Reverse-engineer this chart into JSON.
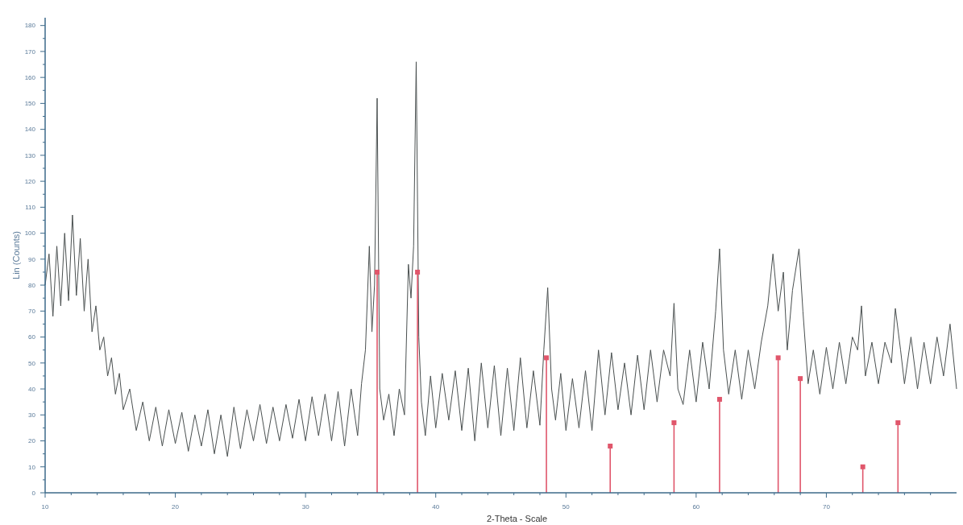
{
  "chart_data": {
    "type": "line",
    "xlabel": "2-Theta - Scale",
    "ylabel": "Lin (Counts)",
    "xlim": [
      10,
      80
    ],
    "ylim": [
      0,
      183
    ],
    "xticks": [
      10,
      {
        "value": 12,
        "label": null
      },
      {
        "value": 14,
        "label": null
      },
      {
        "value": 16,
        "label": null
      },
      {
        "value": 18,
        "label": null
      },
      20,
      {
        "value": 22,
        "label": null
      },
      {
        "value": 24,
        "label": null
      },
      {
        "value": 26,
        "label": null
      },
      {
        "value": 28,
        "label": null
      },
      30,
      {
        "value": 32,
        "label": null
      },
      {
        "value": 34,
        "label": null
      },
      {
        "value": 36,
        "label": null
      },
      {
        "value": 38,
        "label": null
      },
      40,
      {
        "value": 42,
        "label": null
      },
      {
        "value": 44,
        "label": null
      },
      {
        "value": 46,
        "label": null
      },
      {
        "value": 48,
        "label": null
      },
      50,
      {
        "value": 52,
        "label": null
      },
      {
        "value": 54,
        "label": null
      },
      {
        "value": 56,
        "label": null
      },
      {
        "value": 58,
        "label": null
      },
      60,
      {
        "value": 62,
        "label": null
      },
      {
        "value": 64,
        "label": null
      },
      {
        "value": 66,
        "label": null
      },
      {
        "value": 68,
        "label": null
      },
      70,
      {
        "value": 72,
        "label": null
      },
      {
        "value": 74,
        "label": null
      },
      {
        "value": 76,
        "label": null
      },
      {
        "value": 78,
        "label": null
      }
    ],
    "yticks": [
      0,
      {
        "value": 5,
        "label": null
      },
      10,
      {
        "value": 15,
        "label": null
      },
      20,
      {
        "value": 25,
        "label": null
      },
      30,
      {
        "value": 35,
        "label": null
      },
      40,
      {
        "value": 45,
        "label": null
      },
      50,
      {
        "value": 55,
        "label": null
      },
      60,
      {
        "value": 65,
        "label": null
      },
      70,
      {
        "value": 75,
        "label": null
      },
      80,
      {
        "value": 85,
        "label": null
      },
      90,
      {
        "value": 95,
        "label": null
      },
      100,
      {
        "value": 105,
        "label": null
      },
      110,
      {
        "value": 115,
        "label": null
      },
      120,
      {
        "value": 125,
        "label": null
      },
      130,
      {
        "value": 135,
        "label": null
      },
      140,
      {
        "value": 145,
        "label": null
      },
      150,
      {
        "value": 155,
        "label": null
      },
      160,
      {
        "value": 165,
        "label": null
      },
      170,
      {
        "value": 175,
        "label": null
      },
      180
    ],
    "grid": false,
    "series": [
      {
        "color": "#4a5050",
        "x": [
          10,
          10.3,
          10.6,
          10.9,
          11.2,
          11.5,
          11.8,
          12.1,
          12.4,
          12.7,
          13,
          13.3,
          13.6,
          13.9,
          14.2,
          14.5,
          14.8,
          15.1,
          15.4,
          15.7,
          16,
          16.5,
          17,
          17.5,
          18,
          18.5,
          19,
          19.5,
          20,
          20.5,
          21,
          21.5,
          22,
          22.5,
          23,
          23.5,
          24,
          24.5,
          25,
          25.5,
          26,
          26.5,
          27,
          27.5,
          28,
          28.5,
          29,
          29.5,
          30,
          30.5,
          31,
          31.5,
          32,
          32.5,
          33,
          33.5,
          34,
          34.3,
          34.6,
          34.9,
          35.1,
          35.3,
          35.5,
          35.7,
          36,
          36.4,
          36.8,
          37.2,
          37.6,
          37.9,
          38.1,
          38.3,
          38.5,
          38.7,
          38.9,
          39.2,
          39.6,
          40,
          40.5,
          41,
          41.5,
          42,
          42.5,
          43,
          43.5,
          44,
          44.5,
          45,
          45.5,
          46,
          46.5,
          47,
          47.5,
          48,
          48.3,
          48.6,
          48.9,
          49.2,
          49.6,
          50,
          50.5,
          51,
          51.5,
          52,
          52.5,
          53,
          53.5,
          54,
          54.5,
          55,
          55.5,
          56,
          56.5,
          57,
          57.5,
          58,
          58.3,
          58.6,
          59,
          59.5,
          60,
          60.5,
          61,
          61.5,
          61.8,
          62.1,
          62.5,
          63,
          63.5,
          64,
          64.5,
          65,
          65.5,
          65.9,
          66.3,
          66.7,
          67,
          67.4,
          67.9,
          68.2,
          68.6,
          69,
          69.5,
          70,
          70.5,
          71,
          71.5,
          72,
          72.4,
          72.7,
          73,
          73.5,
          74,
          74.5,
          75,
          75.3,
          75.7,
          76,
          76.5,
          77,
          77.5,
          78,
          78.5,
          79,
          79.5,
          80
        ],
        "values": [
          80,
          92,
          68,
          95,
          72,
          100,
          74,
          107,
          76,
          98,
          70,
          90,
          62,
          72,
          55,
          60,
          45,
          52,
          38,
          46,
          32,
          40,
          24,
          35,
          20,
          33,
          18,
          32,
          19,
          31,
          16,
          30,
          18,
          32,
          15,
          30,
          14,
          33,
          17,
          32,
          20,
          34,
          19,
          33,
          20,
          34,
          21,
          36,
          20,
          37,
          22,
          38,
          20,
          39,
          18,
          40,
          22,
          42,
          55,
          95,
          62,
          80,
          152,
          40,
          28,
          38,
          22,
          40,
          30,
          88,
          75,
          95,
          166,
          60,
          35,
          22,
          45,
          25,
          46,
          28,
          47,
          24,
          48,
          20,
          50,
          25,
          49,
          22,
          48,
          24,
          52,
          25,
          47,
          26,
          55,
          79,
          40,
          28,
          46,
          24,
          44,
          25,
          47,
          24,
          55,
          30,
          54,
          32,
          50,
          30,
          53,
          32,
          55,
          35,
          55,
          45,
          73,
          40,
          34,
          55,
          35,
          58,
          40,
          70,
          94,
          55,
          38,
          55,
          36,
          55,
          40,
          58,
          72,
          92,
          70,
          85,
          55,
          78,
          94,
          70,
          42,
          55,
          38,
          56,
          40,
          58,
          42,
          60,
          55,
          72,
          45,
          58,
          42,
          58,
          50,
          71,
          55,
          42,
          60,
          40,
          58,
          42,
          60,
          45,
          65,
          40
        ]
      },
      {
        "type": "lollipop",
        "color": "#e0566b",
        "marker": "square",
        "x": [
          35.5,
          38.6,
          48.5,
          53.4,
          58.3,
          61.8,
          66.3,
          68,
          72.8,
          75.5
        ],
        "values": [
          85,
          85,
          52,
          18,
          27,
          36,
          52,
          44,
          10,
          27
        ]
      }
    ]
  }
}
